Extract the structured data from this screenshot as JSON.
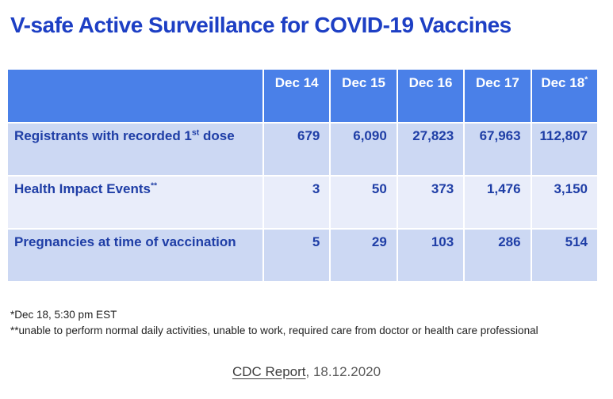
{
  "header": {
    "title": "V-safe Active Surveillance for COVID-19 Vaccines"
  },
  "table": {
    "column_headers": [
      "",
      "Dec 14",
      "Dec 15",
      "Dec 16",
      "Dec 17",
      "Dec 18"
    ],
    "last_column_superscript": "*",
    "rows": [
      {
        "label_main": "Registrants with recorded 1",
        "label_sup": "st",
        "label_tail": " dose",
        "values": [
          "679",
          "6,090",
          "27,823",
          "67,963",
          "112,807"
        ]
      },
      {
        "label_main": "Health Impact Events",
        "label_sup": "**",
        "label_tail": "",
        "values": [
          "3",
          "50",
          "373",
          "1,476",
          "3,150"
        ]
      },
      {
        "label_main": "Pregnancies at time of vaccination",
        "label_sup": "",
        "label_tail": "",
        "values": [
          "5",
          "29",
          "103",
          "286",
          "514"
        ]
      }
    ]
  },
  "footnotes": [
    "*Dec 18, 5:30 pm EST",
    "**unable to perform normal daily activities, unable to work, required care from doctor or health care professional"
  ],
  "source": {
    "link_text": "CDC Report",
    "suffix": ", 18.12.2020"
  },
  "colors": {
    "title_blue": "#1d3fc4",
    "table_header_bg": "#4a80e8",
    "row_bg_light": "#ccd8f3",
    "row_bg_lighter": "#e9edfa",
    "table_text": "#1f3ea6",
    "header_text": "#ffffff",
    "footnote_text": "#1f1f1f",
    "link_text": "#3d3d3d",
    "suffix_text": "#595959"
  },
  "chart_data": {
    "type": "table",
    "title": "V-safe Active Surveillance for COVID-19 Vaccines",
    "categories": [
      "Dec 14",
      "Dec 15",
      "Dec 16",
      "Dec 17",
      "Dec 18"
    ],
    "series": [
      {
        "name": "Registrants with recorded 1st dose",
        "values": [
          679,
          6090,
          27823,
          67963,
          112807
        ]
      },
      {
        "name": "Health Impact Events",
        "values": [
          3,
          50,
          373,
          1476,
          3150
        ]
      },
      {
        "name": "Pregnancies at time of vaccination",
        "values": [
          5,
          29,
          103,
          286,
          514
        ]
      }
    ]
  }
}
